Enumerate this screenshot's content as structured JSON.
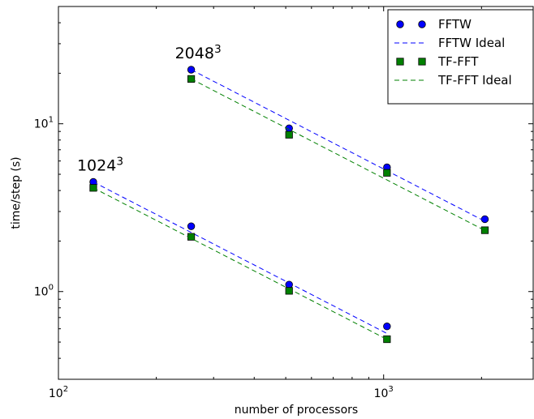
{
  "chart_data": {
    "type": "scatter",
    "title": "",
    "xlabel": "number of processors",
    "ylabel": "time/step (s)",
    "xscale": "log",
    "yscale": "log",
    "xlim": [
      100,
      2900
    ],
    "ylim": [
      0.3,
      50
    ],
    "x_ticks": [
      {
        "value": 100,
        "base": "10",
        "exp": "2"
      },
      {
        "value": 1000,
        "base": "10",
        "exp": "3"
      }
    ],
    "y_ticks": [
      {
        "value": 1,
        "base": "10",
        "exp": "0"
      },
      {
        "value": 10,
        "base": "10",
        "exp": "1"
      }
    ],
    "grid": false,
    "legend_position": "top-right",
    "series": [
      {
        "name": "FFTW",
        "marker": "circle",
        "color": "#0000ff",
        "groups": [
          {
            "x": [
              128,
              256,
              512,
              1024
            ],
            "y": [
              4.5,
              2.45,
              1.1,
              0.62
            ]
          },
          {
            "x": [
              256,
              512,
              1024,
              2048
            ],
            "y": [
              21.0,
              9.4,
              5.5,
              2.7
            ]
          }
        ]
      },
      {
        "name": "FFTW Ideal",
        "style": "dashed",
        "color": "#0000ff",
        "groups": [
          {
            "x": [
              128,
              1024
            ],
            "y": [
              4.5,
              0.5625
            ]
          },
          {
            "x": [
              256,
              2048
            ],
            "y": [
              21.0,
              2.625
            ]
          }
        ]
      },
      {
        "name": "TF-FFT",
        "marker": "square",
        "color": "#008000",
        "groups": [
          {
            "x": [
              128,
              256,
              512,
              1024
            ],
            "y": [
              4.15,
              2.12,
              1.01,
              0.52
            ]
          },
          {
            "x": [
              256,
              512,
              1024,
              2048
            ],
            "y": [
              18.5,
              8.6,
              5.1,
              2.32
            ]
          }
        ]
      },
      {
        "name": "TF-FFT Ideal",
        "style": "dashed",
        "color": "#008000",
        "groups": [
          {
            "x": [
              128,
              1024
            ],
            "y": [
              4.15,
              0.51875
            ]
          },
          {
            "x": [
              256,
              2048
            ],
            "y": [
              18.5,
              2.3125
            ]
          }
        ]
      }
    ],
    "annotations": [
      {
        "base": "1024",
        "exp": "3",
        "x": 128,
        "y": 4.5
      },
      {
        "base": "2048",
        "exp": "3",
        "x": 256,
        "y": 21.0
      }
    ]
  }
}
